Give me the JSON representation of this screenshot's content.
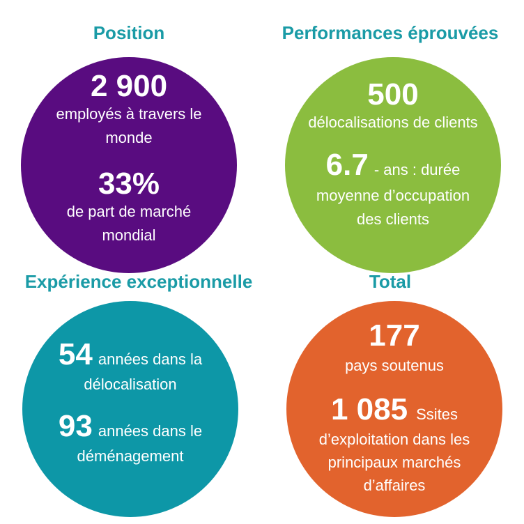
{
  "colors": {
    "title": "#1a9ba6",
    "position": "#590c80",
    "performance": "#8bbd3f",
    "experience": "#0d97a7",
    "total": "#e2632d"
  },
  "position": {
    "title": "Position",
    "stat1_value": "2 900",
    "stat1_line1": "employés à travers le",
    "stat1_line2": "monde",
    "stat2_value": "33%",
    "stat2_line1": "de part de marché",
    "stat2_line2": "mondial"
  },
  "performance": {
    "title": "Performances éprouvées",
    "stat1_value": "500",
    "stat1_line1": "délocalisations de clients",
    "stat2_value": "6.7",
    "stat2_text": "- ans : durée",
    "stat2_line2": "moyenne d’occupation",
    "stat2_line3": "des clients"
  },
  "experience": {
    "title": "Expérience exceptionnelle",
    "stat1_value": "54",
    "stat1_text": "années dans la",
    "stat1_line2": "délocalisation",
    "stat2_value": "93",
    "stat2_text": "années dans le",
    "stat2_line2": "déménagement"
  },
  "total": {
    "title": "Total",
    "stat1_value": "177",
    "stat1_line1": "pays soutenus",
    "stat2_value": "1 085",
    "stat2_text": "Ssites",
    "stat2_line2": "d’exploitation dans les",
    "stat2_line3": "principaux marchés",
    "stat2_line4": "d’affaires"
  }
}
